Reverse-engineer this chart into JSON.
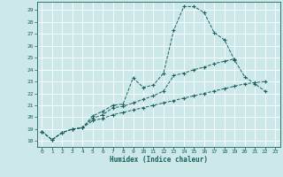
{
  "xlabel": "Humidex (Indice chaleur)",
  "background_color": "#cce8e8",
  "grid_color": "#aad4d4",
  "line_color": "#1a6060",
  "xlim": [
    -0.5,
    23.5
  ],
  "ylim": [
    17.5,
    29.7
  ],
  "xticks": [
    0,
    1,
    2,
    3,
    4,
    5,
    6,
    7,
    8,
    9,
    10,
    11,
    12,
    13,
    14,
    15,
    16,
    17,
    18,
    19,
    20,
    21,
    22,
    23
  ],
  "yticks": [
    18,
    19,
    20,
    21,
    22,
    23,
    24,
    25,
    26,
    27,
    28,
    29
  ],
  "line1_y": [
    18.8,
    18.1,
    18.7,
    19.0,
    19.1,
    20.1,
    20.5,
    21.0,
    21.1,
    23.3,
    22.5,
    22.7,
    23.7,
    27.3,
    29.3,
    29.3,
    28.8,
    27.1,
    26.5,
    24.8,
    23.4,
    22.8,
    22.2,
    null
  ],
  "line2_y": [
    18.8,
    18.1,
    18.7,
    19.0,
    19.1,
    19.9,
    20.2,
    20.8,
    20.9,
    21.2,
    21.5,
    21.8,
    22.2,
    23.5,
    23.7,
    24.0,
    24.2,
    24.5,
    24.7,
    24.9,
    null,
    null,
    null,
    null
  ],
  "line3_y": [
    18.8,
    18.1,
    18.7,
    19.0,
    19.1,
    19.7,
    19.9,
    20.2,
    20.4,
    20.6,
    20.8,
    21.0,
    21.2,
    21.4,
    21.6,
    21.8,
    22.0,
    22.2,
    22.4,
    22.6,
    22.8,
    22.9,
    23.0,
    null
  ]
}
